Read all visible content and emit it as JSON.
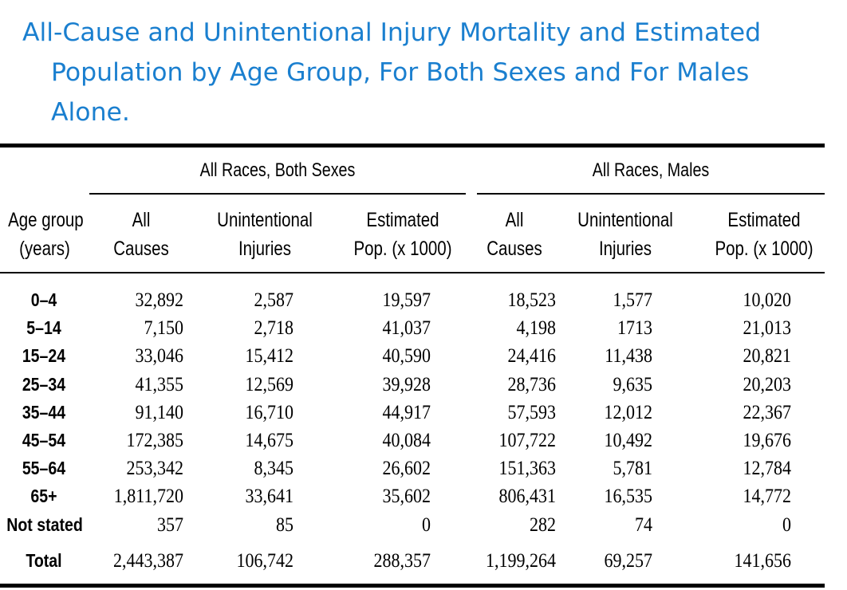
{
  "title": {
    "line1": "All-Cause and Unintentional Injury Mortality and Estimated",
    "line2": "Population by Age Group, For Both Sexes and For Males",
    "line3": "Alone."
  },
  "table": {
    "group_headers": [
      "All Races, Both Sexes",
      "All Races, Males"
    ],
    "columns": [
      {
        "line1": "Age group",
        "line2": "(years)"
      },
      {
        "line1": "All",
        "line2": "Causes"
      },
      {
        "line1": "Unintentional",
        "line2": "Injuries"
      },
      {
        "line1": "Estimated",
        "line2": "Pop. (x 1000)"
      },
      {
        "line1": "All",
        "line2": "Causes"
      },
      {
        "line1": "Unintentional",
        "line2": "Injuries"
      },
      {
        "line1": "Estimated",
        "line2": "Pop. (x 1000)"
      }
    ],
    "rows": [
      [
        "0–4",
        "32,892",
        "2,587",
        "19,597",
        "18,523",
        "1,577",
        "10,020"
      ],
      [
        "5–14",
        "7,150",
        "2,718",
        "41,037",
        "4,198",
        "1713",
        "21,013"
      ],
      [
        "15–24",
        "33,046",
        "15,412",
        "40,590",
        "24,416",
        "11,438",
        "20,821"
      ],
      [
        "25–34",
        "41,355",
        "12,569",
        "39,928",
        "28,736",
        "9,635",
        "20,203"
      ],
      [
        "35–44",
        "91,140",
        "16,710",
        "44,917",
        "57,593",
        "12,012",
        "22,367"
      ],
      [
        "45–54",
        "172,385",
        "14,675",
        "40,084",
        "107,722",
        "10,492",
        "19,676"
      ],
      [
        "55–64",
        "253,342",
        "8,345",
        "26,602",
        "151,363",
        "5,781",
        "12,784"
      ],
      [
        "65+",
        "1,811,720",
        "33,641",
        "35,602",
        "806,431",
        "16,535",
        "14,772"
      ],
      [
        "Not stated",
        "357",
        "85",
        "0",
        "282",
        "74",
        "0"
      ]
    ],
    "total": [
      "Total",
      "2,443,387",
      "106,742",
      "288,357",
      "1,199,264",
      "69,257",
      "141,656"
    ]
  }
}
